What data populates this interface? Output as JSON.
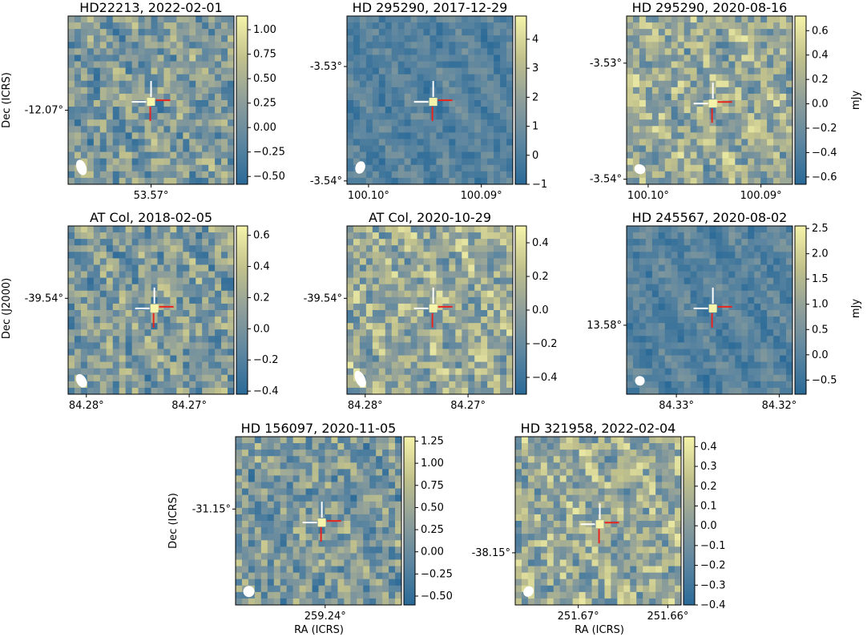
{
  "figure": {
    "ylabel_rows": [
      "Dec (ICRS)",
      "Dec (J2000)",
      "Dec (ICRS)"
    ],
    "xlabel": "RA (ICRS)",
    "colorbar_unit": "mJy"
  },
  "chart_data": [
    {
      "type": "heatmap",
      "title": "HD22213,  2022-02-01",
      "x_ticks": [
        "53.57°"
      ],
      "y_ticks": [
        "-12.07°"
      ],
      "colorbar": {
        "ticks": [
          -0.5,
          -0.25,
          0.0,
          0.25,
          0.5,
          0.75,
          1.0
        ],
        "tick_labels": [
          "−0.50",
          "−0.25",
          "0.00",
          "0.25",
          "0.50",
          "0.75",
          "1.00"
        ],
        "range": [
          -0.58,
          1.14
        ]
      },
      "texture": "mid",
      "peak": 1.0
    },
    {
      "type": "heatmap",
      "title": "HD 295290,  2017-12-29",
      "x_ticks": [
        "100.10°",
        "100.09°"
      ],
      "y_ticks": [
        "-3.53°",
        "-3.54°"
      ],
      "colorbar": {
        "ticks": [
          -1,
          0,
          1,
          2,
          3,
          4
        ],
        "tick_labels": [
          "−1",
          "0",
          "1",
          "2",
          "3",
          "4"
        ],
        "range": [
          -1.0,
          4.8
        ]
      },
      "texture": "low",
      "peak": 4.6
    },
    {
      "type": "heatmap",
      "title": "HD 295290,  2020-08-16",
      "x_ticks": [
        "100.10°",
        "100.09°"
      ],
      "y_ticks": [
        "-3.53°",
        "-3.54°"
      ],
      "colorbar": {
        "ticks": [
          -0.6,
          -0.4,
          -0.2,
          0.0,
          0.2,
          0.4,
          0.6
        ],
        "tick_labels": [
          "−0.6",
          "−0.4",
          "−0.2",
          "0.0",
          "0.2",
          "0.4",
          "0.6"
        ],
        "range": [
          -0.66,
          0.72
        ]
      },
      "texture": "high",
      "peak": 0.6
    },
    {
      "type": "heatmap",
      "title": "AT Col,  2018-02-05",
      "x_ticks": [
        "84.28°",
        "84.27°"
      ],
      "y_ticks": [
        "-39.54°"
      ],
      "colorbar": {
        "ticks": [
          -0.4,
          -0.2,
          0.0,
          0.2,
          0.4,
          0.6
        ],
        "tick_labels": [
          "−0.4",
          "−0.2",
          "0.0",
          "0.2",
          "0.4",
          "0.6"
        ],
        "range": [
          -0.42,
          0.66
        ]
      },
      "texture": "mid",
      "peak": 0.6
    },
    {
      "type": "heatmap",
      "title": "AT Col,  2020-10-29",
      "x_ticks": [
        "84.28°",
        "84.27°"
      ],
      "y_ticks": [
        "-39.54°"
      ],
      "colorbar": {
        "ticks": [
          -0.4,
          -0.2,
          0.0,
          0.2,
          0.4
        ],
        "tick_labels": [
          "−0.4",
          "−0.2",
          "0.0",
          "0.2",
          "0.4"
        ],
        "range": [
          -0.5,
          0.5
        ]
      },
      "texture": "high",
      "peak": 0.48
    },
    {
      "type": "heatmap",
      "title": "HD 245567,  2020-08-02",
      "x_ticks": [
        "84.33°",
        "84.32°"
      ],
      "y_ticks": [
        "13.58°"
      ],
      "colorbar": {
        "ticks": [
          -0.5,
          0.0,
          0.5,
          1.0,
          1.5,
          2.0,
          2.5
        ],
        "tick_labels": [
          "−0.5",
          "0.0",
          "0.5",
          "1.0",
          "1.5",
          "2.0",
          "2.5"
        ],
        "range": [
          -0.78,
          2.55
        ]
      },
      "texture": "low",
      "peak": 2.4
    },
    {
      "type": "heatmap",
      "title": "HD 156097,  2020-11-05",
      "x_ticks": [
        "259.24°"
      ],
      "y_ticks": [
        "-31.15°"
      ],
      "colorbar": {
        "ticks": [
          -0.5,
          -0.25,
          0.0,
          0.25,
          0.5,
          0.75,
          1.0,
          1.25
        ],
        "tick_labels": [
          "−0.50",
          "−0.25",
          "0.00",
          "0.25",
          "0.50",
          "0.75",
          "1.00",
          "1.25"
        ],
        "range": [
          -0.6,
          1.3
        ]
      },
      "texture": "mid",
      "peak": 1.25
    },
    {
      "type": "heatmap",
      "title": "HD 321958,  2022-02-04",
      "x_ticks": [
        "251.67°",
        "251.66°"
      ],
      "y_ticks": [
        "-38.15°"
      ],
      "colorbar": {
        "ticks": [
          -0.4,
          -0.3,
          -0.2,
          -0.1,
          0.0,
          0.1,
          0.2,
          0.3,
          0.4
        ],
        "tick_labels": [
          "−0.4",
          "−0.3",
          "−0.2",
          "−0.1",
          "0.0",
          "0.1",
          "0.2",
          "0.3",
          "0.4"
        ],
        "range": [
          -0.4,
          0.45
        ]
      },
      "texture": "high",
      "peak": 0.45
    }
  ]
}
